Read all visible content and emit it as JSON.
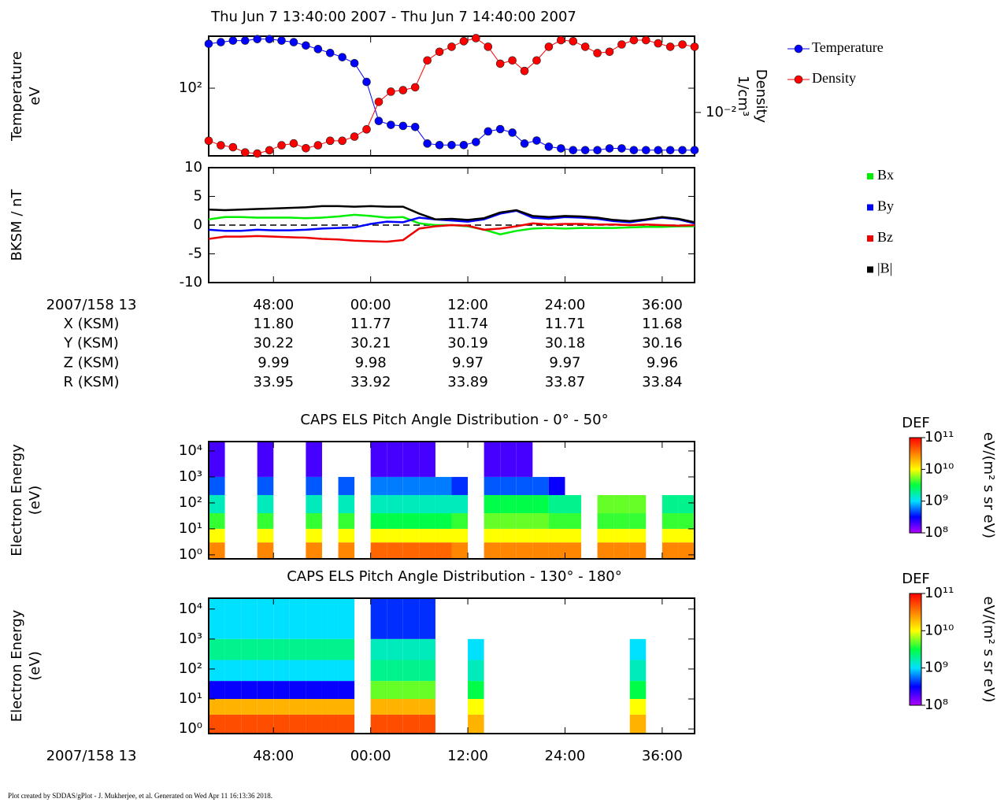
{
  "title": "Thu Jun 7 13:40:00 2007 - Thu Jun 7 14:40:00 2007",
  "footer": "Plot created by SDDAS/gPlot - J. Mukherjee, et al.  Generated on Wed Apr 11 16:13:36 2018.",
  "ephemeris": {
    "rows": [
      {
        "label": "X (KSM)",
        "values": [
          "11.80",
          "11.77",
          "11.74",
          "11.71",
          "11.68"
        ]
      },
      {
        "label": "Y (KSM)",
        "values": [
          "30.22",
          "30.21",
          "30.19",
          "30.18",
          "30.16"
        ]
      },
      {
        "label": "Z (KSM)",
        "values": [
          "9.99",
          "9.98",
          "9.97",
          "9.97",
          "9.96"
        ]
      },
      {
        "label": "R (KSM)",
        "values": [
          "33.95",
          "33.92",
          "33.89",
          "33.87",
          "33.84"
        ]
      }
    ]
  },
  "chart_data": [
    {
      "type": "line",
      "ylabel": [
        "Temperature",
        "eV"
      ],
      "y2label": [
        "Density",
        "1/cm³"
      ],
      "xlim": [
        40,
        100
      ],
      "xticks": [
        48,
        60,
        72,
        84,
        96
      ],
      "ylim": [
        22,
        320
      ],
      "yscale": "log",
      "yticks": [
        {
          "value": 100,
          "label": "10²"
        }
      ],
      "y2lim": [
        0.004,
        0.05
      ],
      "y2scale": "log",
      "y2ticks": [
        {
          "value": 0.01,
          "label": "10⁻²"
        }
      ],
      "markers": true,
      "x": [
        40,
        41.5,
        43,
        44.5,
        46,
        47.5,
        49,
        50.5,
        52,
        53.5,
        55,
        56.5,
        58,
        59.5,
        61,
        62.5,
        64,
        65.5,
        67,
        68.5,
        70,
        71.5,
        73,
        74.5,
        76,
        77.5,
        79,
        80.5,
        82,
        83.5,
        85,
        86.5,
        88,
        89.5,
        91,
        92.5,
        94,
        95.5,
        97,
        98.5,
        100
      ],
      "series": [
        {
          "name": "Temperature",
          "color": "#0000ff",
          "values": [
            270,
            280,
            290,
            290,
            300,
            300,
            290,
            280,
            260,
            240,
            220,
            200,
            175,
            115,
            48,
            44,
            43,
            42,
            29,
            28,
            28,
            28,
            30,
            38,
            40,
            37,
            29,
            31,
            27,
            26,
            25,
            25,
            25,
            26,
            26,
            25,
            25,
            25,
            25,
            25,
            25
          ]
        },
        {
          "name": "Density",
          "color": "#ff0000",
          "axis": "y2",
          "values": [
            0.0055,
            0.005,
            0.0048,
            0.0043,
            0.0042,
            0.0045,
            0.005,
            0.0052,
            0.0047,
            0.005,
            0.0055,
            0.0055,
            0.006,
            0.007,
            0.0125,
            0.0155,
            0.016,
            0.017,
            0.03,
            0.036,
            0.04,
            0.045,
            0.048,
            0.04,
            0.028,
            0.03,
            0.024,
            0.03,
            0.04,
            0.046,
            0.045,
            0.04,
            0.035,
            0.036,
            0.042,
            0.046,
            0.046,
            0.043,
            0.04,
            0.042,
            0.04
          ]
        }
      ]
    },
    {
      "type": "line",
      "ylabel": [
        "BKSM / nT"
      ],
      "xlabel": "2007/158 13",
      "zero_line": true,
      "xlim": [
        40,
        100
      ],
      "xticks": [
        {
          "value": 48,
          "label": "48:00"
        },
        {
          "value": 60,
          "label": "00:00"
        },
        {
          "value": 72,
          "label": "12:00"
        },
        {
          "value": 84,
          "label": "24:00"
        },
        {
          "value": 96,
          "label": "36:00"
        }
      ],
      "ylim": [
        -10,
        10
      ],
      "yticks": [
        -10,
        -5,
        0,
        5,
        10
      ],
      "x": [
        40,
        42,
        44,
        46,
        48,
        50,
        52,
        54,
        56,
        58,
        60,
        62,
        64,
        66,
        68,
        70,
        72,
        74,
        76,
        78,
        80,
        82,
        84,
        86,
        88,
        90,
        92,
        94,
        96,
        98,
        100
      ],
      "series": [
        {
          "name": "Bx",
          "color": "#00ee00",
          "values": [
            1.0,
            1.4,
            1.4,
            1.3,
            1.3,
            1.3,
            1.2,
            1.3,
            1.5,
            1.8,
            1.6,
            1.3,
            1.4,
            0.3,
            0.0,
            0.0,
            -0.2,
            -0.8,
            -1.6,
            -1.0,
            -0.6,
            -0.5,
            -0.6,
            -0.5,
            -0.5,
            -0.5,
            -0.4,
            -0.3,
            -0.3,
            -0.2,
            -0.2
          ]
        },
        {
          "name": "By",
          "color": "#0000ff",
          "values": [
            -0.8,
            -1.0,
            -1.0,
            -0.8,
            -0.9,
            -0.9,
            -0.8,
            -0.6,
            -0.5,
            -0.4,
            0.2,
            0.6,
            0.5,
            1.3,
            1.0,
            0.8,
            0.6,
            1.0,
            2.0,
            2.5,
            1.3,
            1.1,
            1.4,
            1.3,
            1.1,
            0.7,
            0.5,
            0.9,
            1.3,
            1.0,
            0.3
          ]
        },
        {
          "name": "Bz",
          "color": "#ee0000",
          "values": [
            -2.4,
            -2.0,
            -2.0,
            -1.9,
            -2.0,
            -2.1,
            -2.2,
            -2.4,
            -2.5,
            -2.7,
            -2.8,
            -2.9,
            -2.6,
            -0.6,
            -0.2,
            0.0,
            -0.1,
            -0.8,
            -0.6,
            -0.2,
            0.3,
            0.1,
            0.2,
            0.2,
            0.1,
            0.1,
            0.0,
            0.1,
            0.0,
            -0.1,
            0.0
          ]
        },
        {
          "name": "|B|",
          "color": "#000000",
          "values": [
            2.7,
            2.6,
            2.7,
            2.8,
            2.9,
            3.0,
            3.1,
            3.3,
            3.3,
            3.2,
            3.3,
            3.2,
            3.2,
            2.0,
            1.0,
            1.1,
            0.9,
            1.2,
            2.2,
            2.6,
            1.6,
            1.4,
            1.6,
            1.5,
            1.3,
            0.9,
            0.7,
            1.0,
            1.4,
            1.1,
            0.5
          ]
        }
      ]
    },
    {
      "type": "heatmap",
      "title": "CAPS ELS Pitch Angle Distribution - 0° - 50°",
      "ylabel": [
        "Electron Energy",
        "(eV)"
      ],
      "xlim": [
        40,
        100
      ],
      "xticks": [
        48,
        60,
        72,
        84,
        96
      ],
      "ylim": [
        0.7,
        23000
      ],
      "yscale": "log",
      "yticks": [
        {
          "value": 1,
          "label": "10⁰"
        },
        {
          "value": 10,
          "label": "10¹"
        },
        {
          "value": 100,
          "label": "10²"
        },
        {
          "value": 1000,
          "label": "10³"
        },
        {
          "value": 10000,
          "label": "10⁴"
        }
      ],
      "time_bins": [
        40,
        42,
        44,
        46,
        48,
        50,
        52,
        54,
        56,
        58,
        60,
        62,
        64,
        66,
        68,
        70,
        72,
        74,
        76,
        78,
        80,
        82,
        84,
        86,
        88,
        90,
        92,
        94,
        96,
        98,
        100
      ],
      "energy_bins": [
        0.7,
        3,
        10,
        40,
        200,
        1000,
        23000
      ],
      "z": [
        [
          30000000000.0,
          null,
          null,
          30000000000.0,
          null,
          null,
          30000000000.0,
          null,
          30000000000.0,
          null,
          40000000000.0,
          40000000000.0,
          40000000000.0,
          40000000000.0,
          40000000000.0,
          30000000000.0,
          null,
          30000000000.0,
          30000000000.0,
          30000000000.0,
          30000000000.0,
          30000000000.0,
          30000000000.0,
          null,
          30000000000.0,
          30000000000.0,
          30000000000.0,
          null,
          30000000000.0,
          30000000000.0
        ],
        [
          10000000000.0,
          null,
          null,
          10000000000.0,
          null,
          null,
          10000000000.0,
          null,
          10000000000.0,
          null,
          10000000000.0,
          10000000000.0,
          10000000000.0,
          10000000000.0,
          10000000000.0,
          10000000000.0,
          null,
          10000000000.0,
          10000000000.0,
          10000000000.0,
          10000000000.0,
          10000000000.0,
          10000000000.0,
          null,
          10000000000.0,
          10000000000.0,
          10000000000.0,
          null,
          10000000000.0,
          10000000000.0
        ],
        [
          4000000000.0,
          null,
          null,
          4000000000.0,
          null,
          null,
          4000000000.0,
          null,
          4000000000.0,
          null,
          3000000000.0,
          3000000000.0,
          3000000000.0,
          3000000000.0,
          3000000000.0,
          4000000000.0,
          null,
          5000000000.0,
          5000000000.0,
          5000000000.0,
          5000000000.0,
          4000000000.0,
          4000000000.0,
          null,
          4000000000.0,
          4000000000.0,
          4000000000.0,
          null,
          4000000000.0,
          4000000000.0
        ],
        [
          1500000000.0,
          null,
          null,
          1500000000.0,
          null,
          null,
          1500000000.0,
          null,
          1500000000.0,
          null,
          1500000000.0,
          1500000000.0,
          1500000000.0,
          1500000000.0,
          1500000000.0,
          1500000000.0,
          null,
          3000000000.0,
          3000000000.0,
          3000000000.0,
          3000000000.0,
          2000000000.0,
          2000000000.0,
          null,
          5000000000.0,
          5000000000.0,
          5000000000.0,
          null,
          2000000000.0,
          2000000000.0
        ],
        [
          500000000.0,
          null,
          null,
          500000000.0,
          null,
          null,
          500000000.0,
          null,
          500000000.0,
          null,
          600000000.0,
          600000000.0,
          600000000.0,
          600000000.0,
          600000000.0,
          400000000.0,
          null,
          500000000.0,
          500000000.0,
          500000000.0,
          500000000.0,
          300000000.0,
          null,
          null,
          null,
          null,
          null,
          null,
          null,
          null
        ],
        [
          200000000.0,
          null,
          null,
          200000000.0,
          null,
          null,
          200000000.0,
          null,
          null,
          null,
          200000000.0,
          200000000.0,
          200000000.0,
          200000000.0,
          null,
          null,
          null,
          200000000.0,
          200000000.0,
          200000000.0,
          null,
          null,
          null,
          null,
          null,
          null,
          null,
          null,
          null,
          null
        ]
      ],
      "colorbar": {
        "label": "DEF",
        "unit": "eV/(m² s sr eV)",
        "clim": [
          100000000.0,
          100000000000.0
        ],
        "scale": "log",
        "ticks": [
          {
            "value": 100000000.0,
            "label": "10⁸"
          },
          {
            "value": 1000000000.0,
            "label": "10⁹"
          },
          {
            "value": 10000000000.0,
            "label": "10¹⁰"
          },
          {
            "value": 100000000000.0,
            "label": "10¹¹"
          }
        ],
        "colors": [
          "#b000ff",
          "#0000ff",
          "#00e0ff",
          "#00ff40",
          "#ffff00",
          "#ff8000",
          "#ff0000"
        ]
      }
    },
    {
      "type": "heatmap",
      "title": "CAPS ELS Pitch Angle Distribution - 130° - 180°",
      "ylabel": [
        "Electron Energy",
        "(eV)"
      ],
      "xlabel": "2007/158 13",
      "xlim": [
        40,
        100
      ],
      "xticks": [
        {
          "value": 48,
          "label": "48:00"
        },
        {
          "value": 60,
          "label": "00:00"
        },
        {
          "value": 72,
          "label": "12:00"
        },
        {
          "value": 84,
          "label": "24:00"
        },
        {
          "value": 96,
          "label": "36:00"
        }
      ],
      "ylim": [
        0.7,
        23000
      ],
      "yscale": "log",
      "yticks": [
        {
          "value": 1,
          "label": "10⁰"
        },
        {
          "value": 10,
          "label": "10¹"
        },
        {
          "value": 100,
          "label": "10²"
        },
        {
          "value": 1000,
          "label": "10³"
        },
        {
          "value": 10000,
          "label": "10⁴"
        }
      ],
      "time_bins": [
        40,
        42,
        44,
        46,
        48,
        50,
        52,
        54,
        56,
        58,
        60,
        62,
        64,
        66,
        68,
        70,
        72,
        74,
        76,
        78,
        80,
        82,
        84,
        86,
        88,
        90,
        92,
        94,
        96,
        98,
        100
      ],
      "energy_bins": [
        0.7,
        3,
        10,
        40,
        200,
        1000,
        23000
      ],
      "z": [
        [
          50000000000.0,
          50000000000.0,
          50000000000.0,
          50000000000.0,
          50000000000.0,
          50000000000.0,
          50000000000.0,
          50000000000.0,
          50000000000.0,
          null,
          50000000000.0,
          50000000000.0,
          50000000000.0,
          50000000000.0,
          null,
          null,
          20000000000.0,
          null,
          null,
          null,
          null,
          null,
          null,
          null,
          null,
          null,
          20000000000.0,
          null,
          null,
          null
        ],
        [
          20000000000.0,
          20000000000.0,
          20000000000.0,
          20000000000.0,
          20000000000.0,
          20000000000.0,
          20000000000.0,
          20000000000.0,
          20000000000.0,
          null,
          20000000000.0,
          20000000000.0,
          20000000000.0,
          20000000000.0,
          null,
          null,
          10000000000.0,
          null,
          null,
          null,
          null,
          null,
          null,
          null,
          null,
          null,
          10000000000.0,
          null,
          null,
          null
        ],
        [
          300000000.0,
          300000000.0,
          300000000.0,
          300000000.0,
          300000000.0,
          300000000.0,
          300000000.0,
          300000000.0,
          300000000.0,
          null,
          5000000000.0,
          5000000000.0,
          5000000000.0,
          5000000000.0,
          null,
          null,
          3000000000.0,
          null,
          null,
          null,
          null,
          null,
          null,
          null,
          null,
          null,
          3000000000.0,
          null,
          null,
          null
        ],
        [
          1000000000.0,
          1000000000.0,
          1000000000.0,
          1000000000.0,
          1000000000.0,
          1000000000.0,
          1000000000.0,
          1000000000.0,
          1000000000.0,
          null,
          2000000000.0,
          2000000000.0,
          2000000000.0,
          2000000000.0,
          null,
          null,
          1500000000.0,
          null,
          null,
          null,
          null,
          null,
          null,
          null,
          null,
          null,
          1500000000.0,
          null,
          null,
          null
        ],
        [
          2000000000.0,
          2000000000.0,
          2000000000.0,
          2000000000.0,
          2000000000.0,
          2000000000.0,
          2000000000.0,
          2000000000.0,
          2000000000.0,
          null,
          1500000000.0,
          1500000000.0,
          1500000000.0,
          1500000000.0,
          null,
          null,
          1000000000.0,
          null,
          null,
          null,
          null,
          null,
          null,
          null,
          null,
          null,
          1000000000.0,
          null,
          null,
          null
        ],
        [
          1000000000.0,
          1000000000.0,
          1000000000.0,
          1000000000.0,
          1000000000.0,
          1000000000.0,
          1000000000.0,
          1000000000.0,
          1000000000.0,
          null,
          400000000.0,
          400000000.0,
          400000000.0,
          400000000.0,
          null,
          null,
          null,
          null,
          null,
          null,
          null,
          null,
          null,
          null,
          null,
          null,
          null,
          null,
          null,
          null
        ]
      ],
      "colorbar": {
        "label": "DEF",
        "unit": "eV/(m² s sr eV)",
        "clim": [
          100000000.0,
          100000000000.0
        ],
        "scale": "log",
        "ticks": [
          {
            "value": 100000000.0,
            "label": "10⁸"
          },
          {
            "value": 1000000000.0,
            "label": "10⁹"
          },
          {
            "value": 10000000000.0,
            "label": "10¹⁰"
          },
          {
            "value": 100000000000.0,
            "label": "10¹¹"
          }
        ],
        "colors": [
          "#b000ff",
          "#0000ff",
          "#00e0ff",
          "#00ff40",
          "#ffff00",
          "#ff8000",
          "#ff0000"
        ]
      }
    }
  ]
}
